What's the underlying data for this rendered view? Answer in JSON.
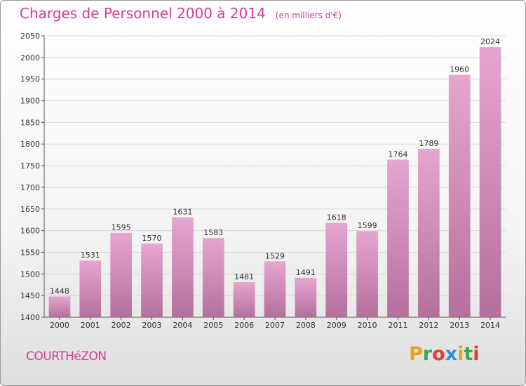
{
  "header": {
    "title": "Charges de Personnel 2000 à 2014",
    "subtitle": "(en milliers d'€)"
  },
  "footer": {
    "commune": "COURTHéZON",
    "logo_letters": [
      "P",
      "r",
      "o",
      "x",
      "i",
      "t",
      "i"
    ],
    "logo_colors": [
      "#e8a020",
      "#3aa84c",
      "#e63c2e",
      "#2f8fd8",
      "#e8a020",
      "#3aa84c",
      "#e63c2e"
    ]
  },
  "colors": {
    "bar_top": "#e6a6d0",
    "bar_bottom": "#b4709c",
    "axis": "#555555",
    "grid": "#d8d8d8",
    "text": "#333333"
  },
  "chart_data": {
    "type": "bar",
    "categories": [
      "2000",
      "2001",
      "2002",
      "2003",
      "2004",
      "2005",
      "2006",
      "2007",
      "2008",
      "2009",
      "2010",
      "2011",
      "2012",
      "2013",
      "2014"
    ],
    "values": [
      1448,
      1531,
      1595,
      1570,
      1631,
      1583,
      1481,
      1529,
      1491,
      1618,
      1599,
      1764,
      1789,
      1960,
      2024
    ],
    "ylim": [
      1400,
      2050
    ],
    "yticks": [
      1400,
      1450,
      1500,
      1550,
      1600,
      1650,
      1700,
      1750,
      1800,
      1850,
      1900,
      1950,
      2000,
      2050
    ],
    "grid": true
  }
}
